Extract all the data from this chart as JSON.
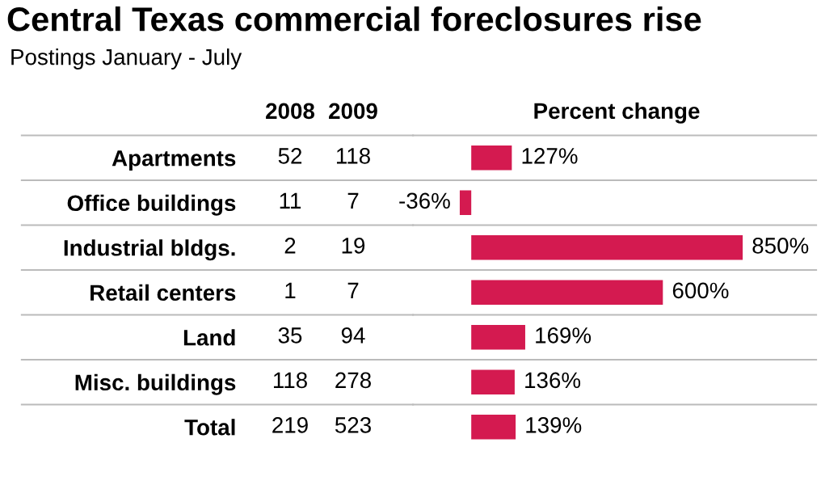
{
  "chart_data": [
    {
      "type": "heatmap",
      "title": "Central Texas commercial foreclosures rise",
      "subtitle": "Postings January - July",
      "categories": [
        "2008",
        "2009"
      ],
      "y_categories": [
        null,
        null,
        null,
        null,
        null,
        null,
        null
      ],
      "cells": [
        [
          52,
          118
        ],
        [
          11,
          7
        ],
        [
          2,
          19
        ],
        [
          1,
          7
        ],
        [
          35,
          94
        ],
        [
          118,
          278
        ],
        [
          219,
          523
        ]
      ],
      "data_labels": true
    },
    {
      "type": "bar",
      "orientation": "horizontal",
      "title": "Percent change",
      "categories": [
        "Apartments",
        "Office buildings",
        "Industrial bldgs.",
        "Retail centers",
        "Land",
        "Misc. buildings",
        "Total"
      ],
      "values": [
        127,
        -36,
        850,
        600,
        169,
        136,
        139
      ],
      "color": "#d41a50",
      "value_labels": [
        "127%",
        "-36%",
        "850%",
        "600%",
        "169%",
        "136%",
        "139%"
      ],
      "xlim": [
        -170,
        1080
      ]
    }
  ]
}
